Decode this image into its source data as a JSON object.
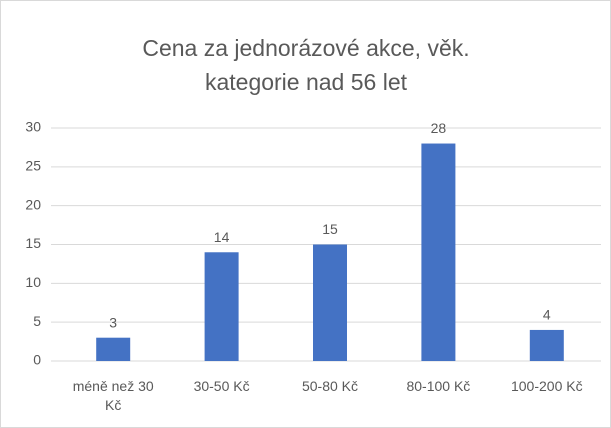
{
  "chart_data": {
    "type": "bar",
    "title": "Cena za jednorázové akce, věk. kategorie nad 56 let",
    "categories": [
      "méně než 30 Kč",
      "30-50 Kč",
      "50-80 Kč",
      "80-100 Kč",
      "100-200 Kč"
    ],
    "values": [
      3,
      14,
      15,
      28,
      4
    ],
    "color": "#4472c4",
    "ylim": [
      0,
      30
    ],
    "yticks": [
      0,
      5,
      10,
      15,
      20,
      25,
      30
    ],
    "grid": true
  }
}
